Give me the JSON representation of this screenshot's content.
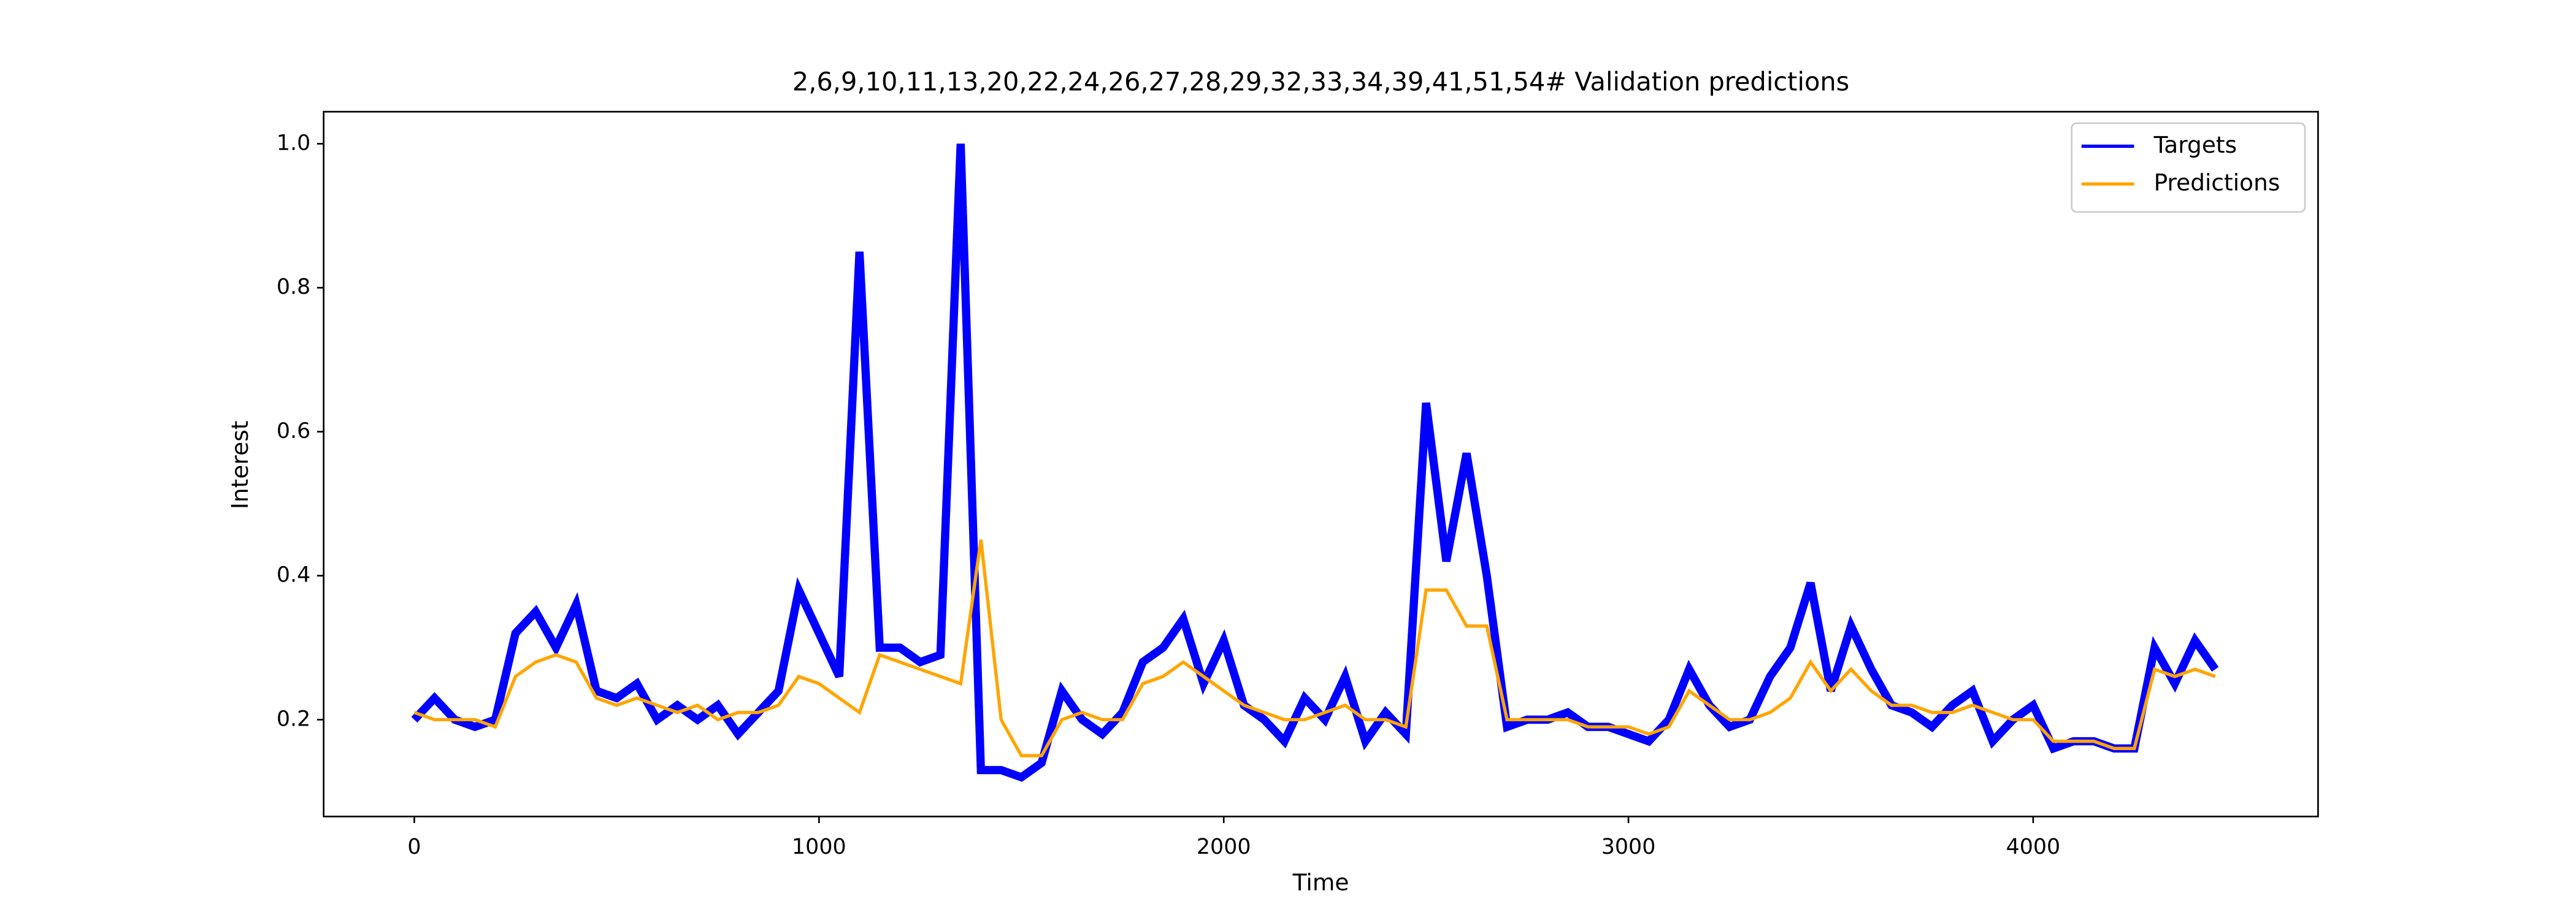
{
  "chart_data": {
    "type": "line",
    "title": "2,6,9,10,11,13,20,22,24,26,27,28,29,32,33,34,39,41,51,54# Validation predictions",
    "xlabel": "Time",
    "ylabel": "Interest",
    "x": [
      0,
      50,
      100,
      150,
      200,
      250,
      300,
      350,
      400,
      450,
      500,
      550,
      600,
      650,
      700,
      750,
      800,
      850,
      900,
      950,
      1000,
      1050,
      1100,
      1150,
      1200,
      1250,
      1300,
      1350,
      1400,
      1450,
      1500,
      1550,
      1600,
      1650,
      1700,
      1750,
      1800,
      1850,
      1900,
      1950,
      2000,
      2050,
      2100,
      2150,
      2200,
      2250,
      2300,
      2350,
      2400,
      2450,
      2500,
      2550,
      2600,
      2650,
      2700,
      2750,
      2800,
      2850,
      2900,
      2950,
      3000,
      3050,
      3100,
      3150,
      3200,
      3250,
      3300,
      3350,
      3400,
      3450,
      3500,
      3550,
      3600,
      3650,
      3700,
      3750,
      3800,
      3850,
      3900,
      3950,
      4000,
      4050,
      4100,
      4150,
      4200,
      4250,
      4300,
      4350,
      4400,
      4450
    ],
    "series": [
      {
        "name": "Targets",
        "color": "#0000ff",
        "values": [
          0.2,
          0.23,
          0.2,
          0.19,
          0.2,
          0.32,
          0.35,
          0.3,
          0.36,
          0.24,
          0.23,
          0.25,
          0.2,
          0.22,
          0.2,
          0.22,
          0.18,
          0.21,
          0.24,
          0.38,
          0.32,
          0.26,
          0.85,
          0.3,
          0.3,
          0.28,
          0.29,
          1.0,
          0.13,
          0.13,
          0.12,
          0.14,
          0.24,
          0.2,
          0.18,
          0.21,
          0.28,
          0.3,
          0.34,
          0.25,
          0.31,
          0.22,
          0.2,
          0.17,
          0.23,
          0.2,
          0.26,
          0.17,
          0.21,
          0.18,
          0.64,
          0.42,
          0.57,
          0.4,
          0.19,
          0.2,
          0.2,
          0.21,
          0.19,
          0.19,
          0.18,
          0.17,
          0.2,
          0.27,
          0.22,
          0.19,
          0.2,
          0.26,
          0.3,
          0.39,
          0.24,
          0.33,
          0.27,
          0.22,
          0.21,
          0.19,
          0.22,
          0.24,
          0.17,
          0.2,
          0.22,
          0.16,
          0.17,
          0.17,
          0.16,
          0.16,
          0.3,
          0.25,
          0.31,
          0.27
        ]
      },
      {
        "name": "Predictions",
        "color": "#ffa500",
        "values": [
          0.21,
          0.2,
          0.2,
          0.2,
          0.19,
          0.26,
          0.28,
          0.29,
          0.28,
          0.23,
          0.22,
          0.23,
          0.22,
          0.21,
          0.22,
          0.2,
          0.21,
          0.21,
          0.22,
          0.26,
          0.25,
          0.23,
          0.21,
          0.29,
          0.28,
          0.27,
          0.26,
          0.25,
          0.45,
          0.2,
          0.15,
          0.15,
          0.2,
          0.21,
          0.2,
          0.2,
          0.25,
          0.26,
          0.28,
          0.26,
          0.24,
          0.22,
          0.21,
          0.2,
          0.2,
          0.21,
          0.22,
          0.2,
          0.2,
          0.19,
          0.38,
          0.38,
          0.33,
          0.33,
          0.2,
          0.2,
          0.2,
          0.2,
          0.19,
          0.19,
          0.19,
          0.18,
          0.19,
          0.24,
          0.22,
          0.2,
          0.2,
          0.21,
          0.23,
          0.28,
          0.24,
          0.27,
          0.24,
          0.22,
          0.22,
          0.21,
          0.21,
          0.22,
          0.21,
          0.2,
          0.2,
          0.17,
          0.17,
          0.17,
          0.16,
          0.16,
          0.27,
          0.26,
          0.27,
          0.26
        ]
      }
    ],
    "xlim": [
      -224,
      4704
    ],
    "xticks": [
      0,
      1000,
      2000,
      3000,
      4000
    ],
    "ylim": [
      0.0655,
      1.0445
    ],
    "yticks": [
      0.2,
      0.4,
      0.6,
      0.8,
      {
        "value": 1.0,
        "label": "1.0"
      }
    ],
    "legend": "upper right"
  }
}
